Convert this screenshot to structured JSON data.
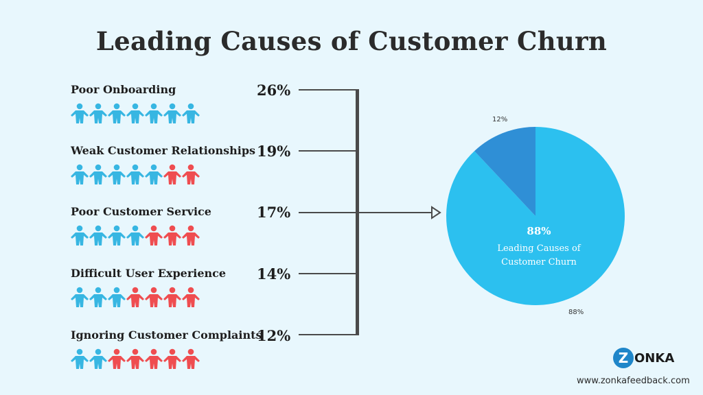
{
  "title": "Leading Causes of Customer Churn",
  "colors": {
    "person_blue": "#37b6e2",
    "person_red": "#ef4d50",
    "pie_main": "#2cc0ef",
    "pie_slice": "#2f8fd6",
    "connector": "#4a4a4a"
  },
  "causes": [
    {
      "label": "Poor Onboarding",
      "percent": "26%",
      "blue": 7,
      "red": 0
    },
    {
      "label": "Weak Customer Relationships",
      "percent": "19%",
      "blue": 5,
      "red": 2
    },
    {
      "label": "Poor Customer Service",
      "percent": "17%",
      "blue": 4,
      "red": 3
    },
    {
      "label": "Difficult User Experience",
      "percent": "14%",
      "blue": 3,
      "red": 4
    },
    {
      "label": "Ignoring Customer Complaints",
      "percent": "12%",
      "blue": 2,
      "red": 5
    }
  ],
  "chart_data": {
    "type": "pie",
    "title": "Leading Causes of Customer Churn",
    "slices": [
      {
        "label": "Leading Causes of Customer Churn",
        "value": 88,
        "display": "88%"
      },
      {
        "label": "",
        "value": 12,
        "display": "12%"
      }
    ],
    "center_value": "88%",
    "center_label_lines": [
      "Leading Causes of",
      "Customer Churn"
    ]
  },
  "logo": {
    "badge": "Z",
    "text": "ONKA"
  },
  "website": "www.zonkafeedback.com"
}
